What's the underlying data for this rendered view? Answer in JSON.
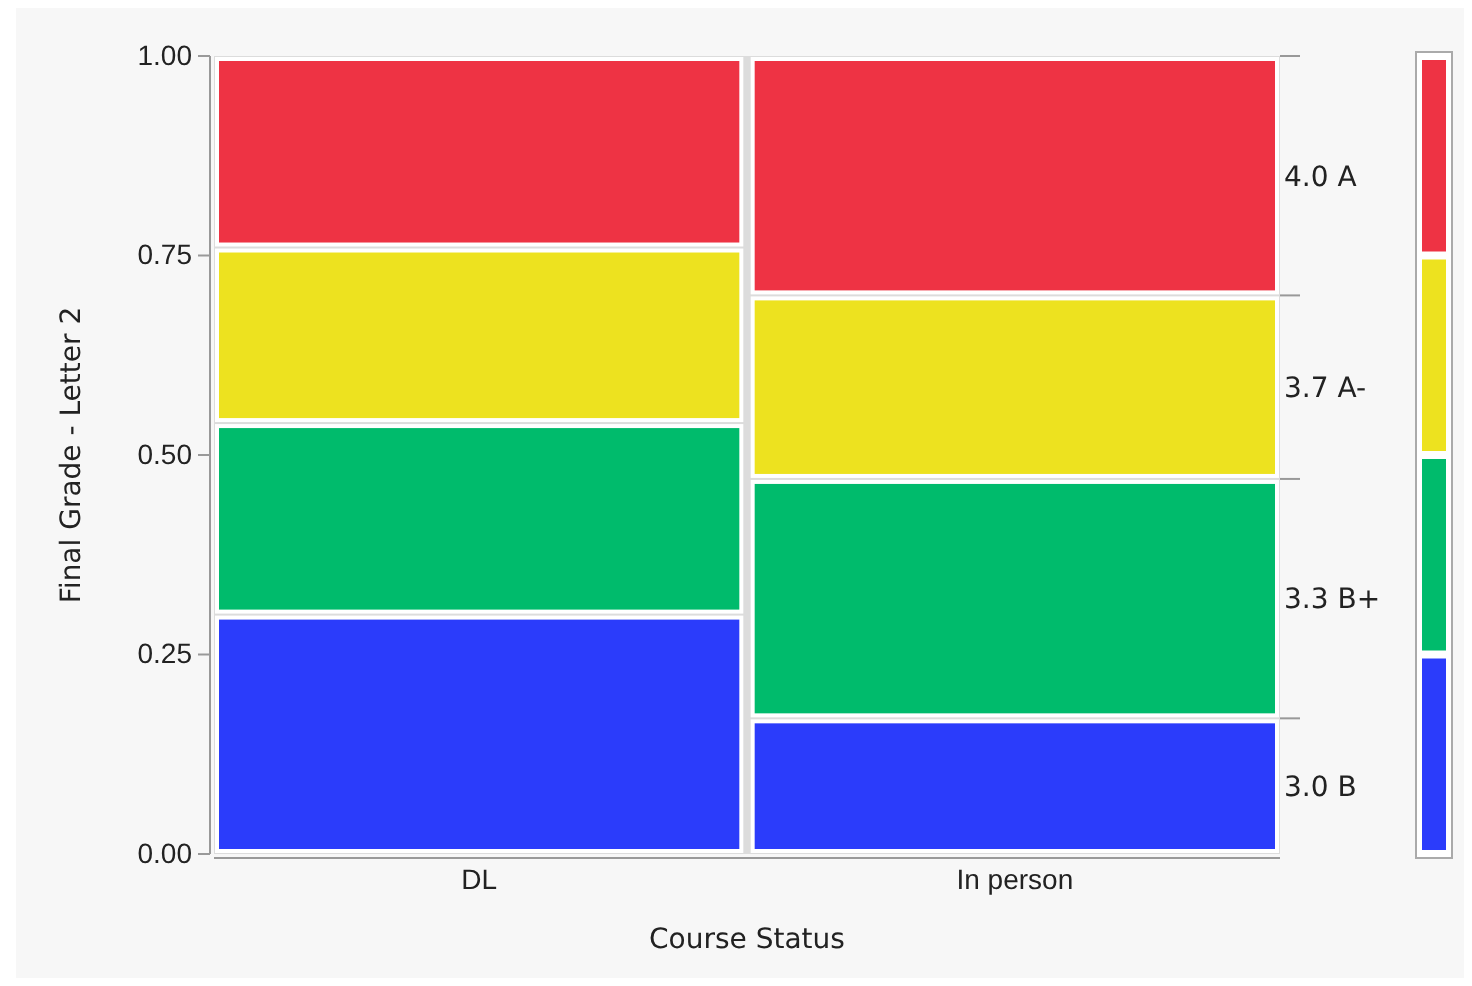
{
  "chart_data": {
    "type": "bar",
    "stacked": true,
    "xlabel": "Course Status",
    "ylabel": "Final Grade - Letter 2",
    "categories": [
      "DL",
      "In person"
    ],
    "series": [
      {
        "name": "3.0 B",
        "color": "#2b3cfb",
        "values": [
          0.3,
          0.17
        ]
      },
      {
        "name": "3.3 B+",
        "color": "#00bb6c",
        "values": [
          0.24,
          0.3
        ]
      },
      {
        "name": "3.7 A-",
        "color": "#ede21f",
        "values": [
          0.22,
          0.23
        ]
      },
      {
        "name": "4.0 A",
        "color": "#ee3344",
        "values": [
          0.24,
          0.3
        ]
      }
    ],
    "ylim": [
      0,
      1
    ],
    "yticks": [
      {
        "value": 0,
        "label": "0.00"
      },
      {
        "value": 0.25,
        "label": "0.25"
      },
      {
        "value": 0.5,
        "label": "0.50"
      },
      {
        "value": 0.75,
        "label": "0.75"
      },
      {
        "value": 1,
        "label": "1.00"
      }
    ],
    "legend": "right"
  }
}
